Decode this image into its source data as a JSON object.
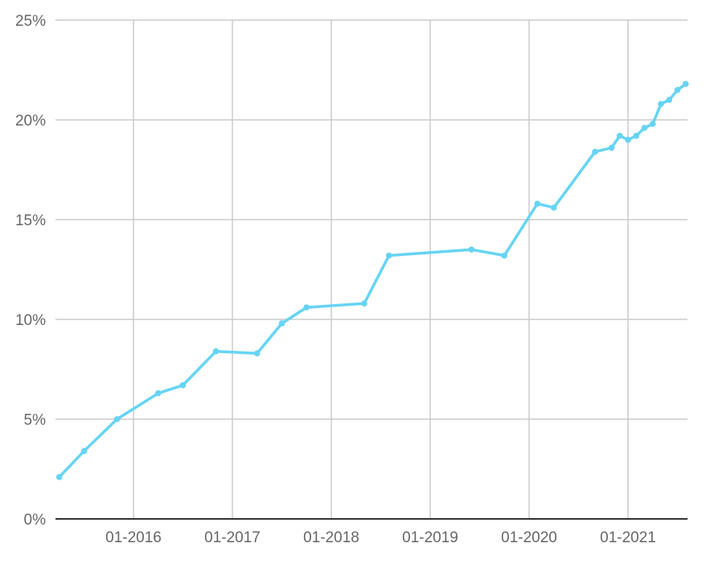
{
  "chart_data": {
    "type": "line",
    "title": "",
    "xlabel": "",
    "ylabel": "",
    "ylim": [
      0,
      25
    ],
    "y_ticks": [
      "0%",
      "5%",
      "10%",
      "15%",
      "20%",
      "25%"
    ],
    "y_tick_values": [
      0,
      5,
      10,
      15,
      20,
      25
    ],
    "x_ticks": [
      "01-2016",
      "01-2017",
      "01-2018",
      "01-2019",
      "01-2020",
      "01-2021"
    ],
    "x_tick_values": [
      "2016-01",
      "2017-01",
      "2018-01",
      "2019-01",
      "2020-01",
      "2021-01"
    ],
    "xlim": [
      "2015-03",
      "2021-08"
    ],
    "grid": true,
    "line_color": "#66d4f5",
    "series": [
      {
        "x": [
          "2015-04",
          "2015-07",
          "2015-11",
          "2016-04",
          "2016-07",
          "2016-11",
          "2017-04",
          "2017-07",
          "2017-10",
          "2018-05",
          "2018-08",
          "2019-06",
          "2019-10",
          "2020-02",
          "2020-04",
          "2020-09",
          "2020-11",
          "2020-12",
          "2021-01",
          "2021-02",
          "2021-03",
          "2021-04",
          "2021-05",
          "2021-06",
          "2021-07",
          "2021-08"
        ],
        "y": [
          2.1,
          3.4,
          5.0,
          6.3,
          6.7,
          8.4,
          8.3,
          9.8,
          10.6,
          10.8,
          13.2,
          13.5,
          13.2,
          15.8,
          15.6,
          18.4,
          18.6,
          19.2,
          19.0,
          19.2,
          19.6,
          19.8,
          20.8,
          21.0,
          21.5,
          21.8
        ]
      }
    ]
  }
}
